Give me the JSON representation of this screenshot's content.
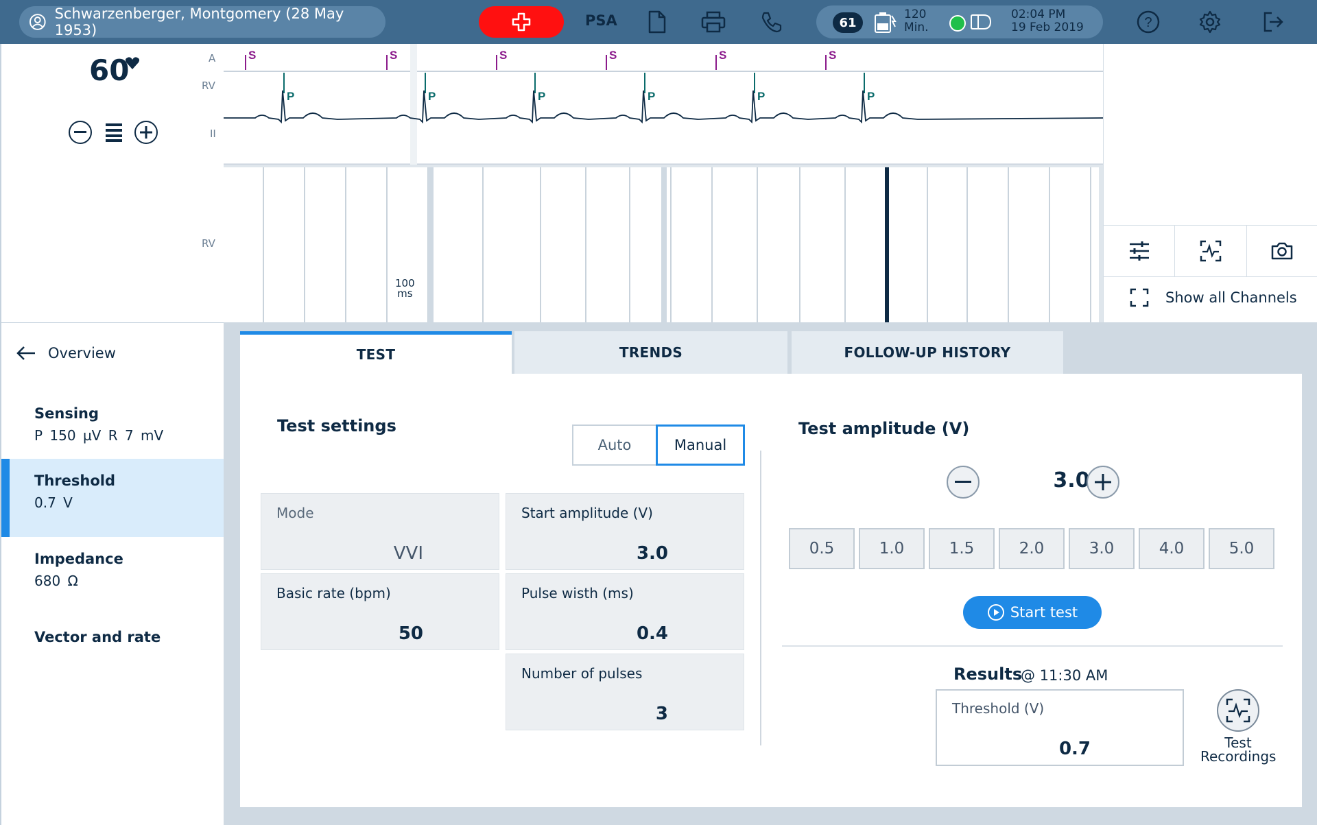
{
  "header": {
    "patient": "Schwarzenberger, Montgomery (28 May 1953)",
    "mode_label": "PSA",
    "heart_rate_badge": "61",
    "battery_line1": "120",
    "battery_line2": "Min.",
    "time": "02:04 PM",
    "date": "19 Feb 2019",
    "icons": [
      "user-circle-icon",
      "medical-cross-icon",
      "document-icon",
      "printer-icon",
      "phone-icon",
      "battery-charging-icon",
      "connection-status-icon",
      "device-icon",
      "help-icon",
      "gear-icon",
      "logout-icon"
    ]
  },
  "rate_panel": {
    "rate": "60",
    "channels": [
      "A",
      "RV",
      "II",
      "RV"
    ],
    "scale_label_1": "100",
    "scale_label_2": "ms"
  },
  "ecg": {
    "s_marker": "S",
    "p_marker": "P",
    "marker_count": 6
  },
  "tools": {
    "icons": [
      "sliders-icon",
      "ecg-focus-icon",
      "camera-icon"
    ],
    "show_all_channels": "Show all Channels"
  },
  "sidebar": {
    "back_label": "Overview",
    "items": [
      {
        "title": "Sensing",
        "sub": "P 150 µV   R 7 mV"
      },
      {
        "title": "Threshold",
        "sub": "0.7 V",
        "active": true
      },
      {
        "title": "Impedance",
        "sub": "680 Ω"
      },
      {
        "title": "Vector and rate",
        "sub": ""
      }
    ]
  },
  "tabs": [
    "TEST",
    "TRENDS",
    "FOLLOW-UP HISTORY"
  ],
  "test_settings": {
    "title": "Test settings",
    "toggle_auto": "Auto",
    "toggle_manual": "Manual",
    "selected_toggle": "Manual",
    "fields": {
      "mode": {
        "label": "Mode",
        "value": "VVI"
      },
      "start_amplitude": {
        "label": "Start amplitude (V)",
        "value": "3.0"
      },
      "basic_rate": {
        "label": "Basic rate (bpm)",
        "value": "50"
      },
      "pulse_width": {
        "label": "Pulse wisth (ms)",
        "value": "0.4"
      },
      "num_pulses": {
        "label": "Number of pulses",
        "value": "3"
      }
    }
  },
  "test_amplitude": {
    "title": "Test amplitude (V)",
    "value": "3.0",
    "presets": [
      "0.5",
      "1.0",
      "1.5",
      "2.0",
      "3.0",
      "4.0",
      "5.0"
    ],
    "start_button": "Start test"
  },
  "results": {
    "title": "Results",
    "time": "@ 11:30 AM",
    "threshold_label": "Threshold (V)",
    "threshold_value": "0.7",
    "recordings_line1": "Test",
    "recordings_line2": "Recordings"
  },
  "colors": {
    "topbar": "#3f6a8e",
    "accent": "#1f8ae6",
    "emergency": "#ff1010",
    "s_marker": "#8b1a8b",
    "p_marker": "#0a6b6b",
    "ecg_trace": "#0e2a44"
  }
}
